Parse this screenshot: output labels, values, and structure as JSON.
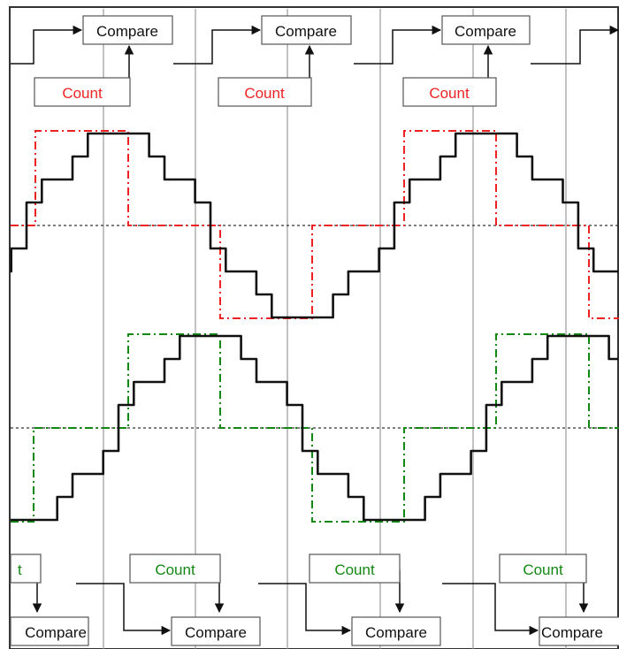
{
  "labels": {
    "compare": "Compare",
    "count": "Count",
    "count_partial": "t",
    "compare_partial": "Compare"
  },
  "colors": {
    "red": "#ee2222",
    "green": "#118811",
    "grid": "#999999",
    "wave": "#111111",
    "axis": "#333333"
  }
}
